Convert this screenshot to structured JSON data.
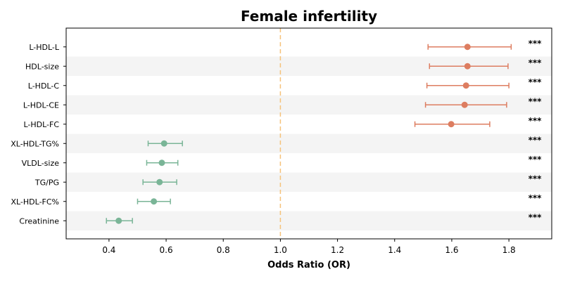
{
  "chart_data": {
    "type": "forest",
    "title": "Female infertility",
    "xlabel": "Odds Ratio (OR)",
    "ylabel": "",
    "xlim": [
      0.25,
      1.95
    ],
    "xticks": [
      "0.4",
      "0.6",
      "0.8",
      "1.0",
      "1.2",
      "1.4",
      "1.6",
      "1.8"
    ],
    "reference_line": 1.0,
    "categories": [
      "L-HDL-L",
      "HDL-size",
      "L-HDL-C",
      "L-HDL-CE",
      "L-HDL-FC",
      "XL-HDL-TG%",
      "VLDL-size",
      "TG/PG",
      "XL-HDL-FC%",
      "Creatinine"
    ],
    "or": [
      1.655,
      1.655,
      1.65,
      1.645,
      1.598,
      0.593,
      0.585,
      0.577,
      0.557,
      0.434
    ],
    "ci_low": [
      1.517,
      1.522,
      1.513,
      1.508,
      1.471,
      0.537,
      0.532,
      0.519,
      0.5,
      0.391
    ],
    "ci_high": [
      1.808,
      1.797,
      1.8,
      1.792,
      1.733,
      0.657,
      0.641,
      0.637,
      0.615,
      0.482
    ],
    "significance": [
      "***",
      "***",
      "***",
      "***",
      "***",
      "***",
      "***",
      "***",
      "***",
      "***"
    ],
    "colors": {
      "risk": "#dd7d60",
      "protective": "#7ab597",
      "reference": "#f5c27a",
      "band": "#f4f4f4"
    },
    "grid": false
  }
}
